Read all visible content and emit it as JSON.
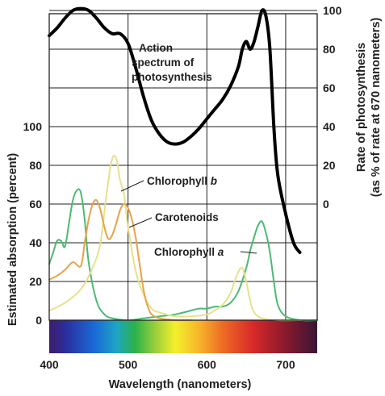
{
  "chart_data": {
    "type": "line",
    "title": "",
    "xlabel": "Wavelength (nanometers)",
    "ylabel_left": "Estimated absorption (percent)",
    "ylabel_right_line1": "Rate of photosynthesis",
    "ylabel_right_line2": "(as % of rate at 670 nanometers)",
    "xlim": [
      400,
      740
    ],
    "ylim_left": [
      0,
      160
    ],
    "right_axis": {
      "zero_at_left_value": 60,
      "scale": 1,
      "max": 100
    },
    "x_ticks": [
      400,
      500,
      600,
      700
    ],
    "left_ticks": [
      0,
      20,
      40,
      60,
      80,
      100
    ],
    "right_ticks": [
      0,
      20,
      40,
      60,
      80,
      100
    ],
    "grid": true,
    "spectrum_bar": true,
    "series": [
      {
        "name": "Action spectrum of photosynthesis",
        "label_line1": "Action",
        "label_line2": "spectrum of",
        "label_line3": "photosynthesis",
        "axis": "right",
        "color": "#000000",
        "x": [
          400,
          410,
          420,
          430,
          440,
          450,
          460,
          470,
          480,
          490,
          500,
          510,
          520,
          530,
          540,
          550,
          560,
          570,
          580,
          590,
          600,
          610,
          620,
          630,
          640,
          645,
          650,
          655,
          660,
          665,
          670,
          675,
          680,
          685,
          690,
          700,
          710,
          718
        ],
        "values": [
          87,
          91,
          96,
          100,
          101,
          100,
          96,
          91,
          88,
          88,
          83,
          70,
          55,
          43,
          36,
          32,
          31,
          32,
          35,
          39,
          44,
          49,
          54,
          61,
          71,
          80,
          84,
          80,
          84,
          92,
          100,
          97,
          80,
          40,
          15,
          -5,
          -20,
          -25
        ]
      },
      {
        "name": "Chlorophyll b",
        "label_main": "Chlorophyll ",
        "label_letter": "b",
        "axis": "left",
        "color": "#e4e28e",
        "x": [
          400,
          420,
          440,
          455,
          465,
          472,
          478,
          482,
          486,
          490,
          495,
          500,
          510,
          520,
          530,
          540,
          560,
          580,
          600,
          610,
          620,
          630,
          635,
          640,
          645,
          650,
          655,
          660,
          670,
          690,
          720
        ],
        "values": [
          5,
          9,
          16,
          27,
          40,
          63,
          80,
          85,
          82,
          72,
          65,
          48,
          25,
          13,
          6,
          4,
          2,
          2,
          3,
          5,
          8,
          14,
          20,
          25,
          27,
          20,
          10,
          4,
          1,
          0,
          0
        ]
      },
      {
        "name": "Carotenoids",
        "axis": "left",
        "color": "#e8a24a",
        "x": [
          400,
          410,
          420,
          430,
          440,
          445,
          450,
          455,
          460,
          465,
          470,
          475,
          480,
          485,
          490,
          495,
          500,
          505,
          510,
          515,
          520,
          525,
          530,
          540,
          560,
          580
        ],
        "values": [
          21,
          23,
          26,
          30,
          28,
          40,
          52,
          60,
          62,
          57,
          48,
          42,
          44,
          50,
          57,
          60,
          58,
          52,
          42,
          28,
          15,
          7,
          3,
          1,
          0,
          0
        ]
      },
      {
        "name": "Chlorophyll a",
        "label_main": "Chlorophyll ",
        "label_letter": "a",
        "axis": "left",
        "color": "#4cba72",
        "x": [
          400,
          405,
          410,
          415,
          420,
          425,
          430,
          435,
          440,
          445,
          450,
          460,
          470,
          480,
          500,
          520,
          540,
          560,
          580,
          590,
          600,
          610,
          620,
          630,
          640,
          650,
          655,
          660,
          665,
          670,
          675,
          680,
          685,
          690,
          700,
          720,
          740
        ],
        "values": [
          29,
          35,
          41,
          41,
          38,
          50,
          62,
          67,
          66,
          52,
          30,
          10,
          3,
          1,
          0,
          1,
          2,
          3,
          5,
          6,
          6,
          7,
          7,
          9,
          15,
          27,
          36,
          43,
          49,
          51,
          45,
          35,
          20,
          8,
          2,
          0,
          0
        ]
      }
    ]
  }
}
